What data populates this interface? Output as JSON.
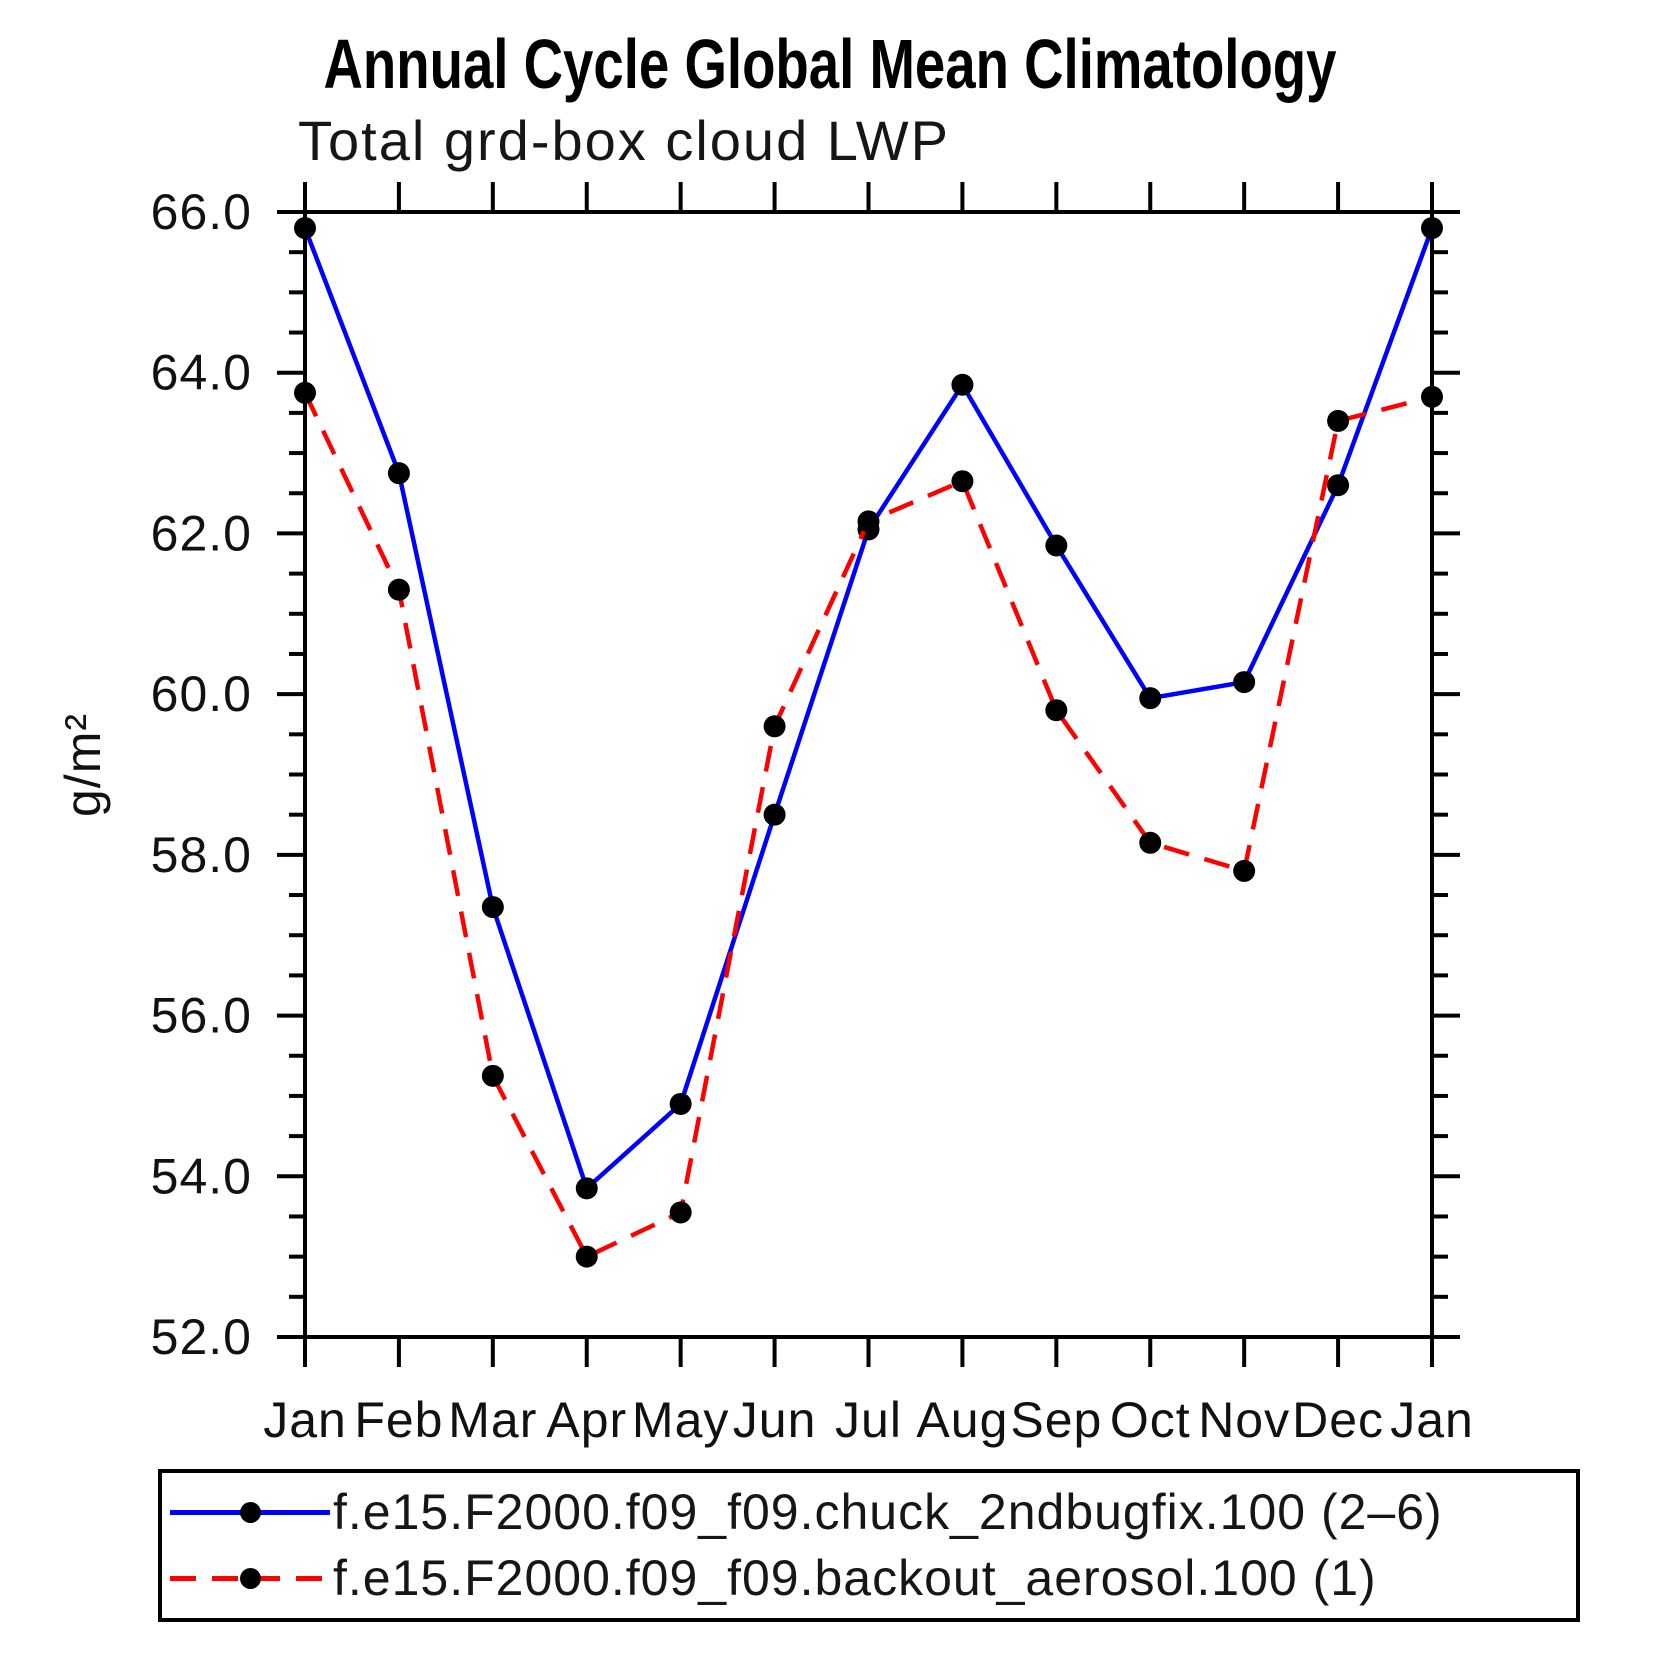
{
  "chart_data": {
    "type": "line",
    "title": "Annual Cycle Global Mean Climatology",
    "subtitle": "Total grd-box cloud LWP",
    "ylabel": "g/m²",
    "categories": [
      "Jan",
      "Feb",
      "Mar",
      "Apr",
      "May",
      "Jun",
      "Jul",
      "Aug",
      "Sep",
      "Oct",
      "Nov",
      "Dec",
      "Jan"
    ],
    "ylim": [
      52.0,
      66.0
    ],
    "y_major_step": 2.0,
    "y_minor_step": 0.5,
    "y_tick_labels": [
      "52.0",
      "54.0",
      "56.0",
      "58.0",
      "60.0",
      "62.0",
      "64.0",
      "66.0"
    ],
    "grid": false,
    "legend_position": "bottom",
    "axis_color": "#000000",
    "marker": {
      "shape": "circle",
      "color": "#000000"
    },
    "series": [
      {
        "name": "f.e15.F2000.f09_f09.chuck_2ndbugfix.100 (2–6)",
        "color": "#0000ff",
        "line_style": "solid",
        "values": [
          65.8,
          62.75,
          57.35,
          53.85,
          54.9,
          58.5,
          62.05,
          63.85,
          61.85,
          59.95,
          60.15,
          62.6,
          65.8
        ]
      },
      {
        "name": "f.e15.F2000.f09_f09.backout_aerosol.100 (1)",
        "color": "#ff0000",
        "line_style": "dashed",
        "values": [
          63.75,
          61.3,
          55.25,
          53.0,
          53.55,
          59.6,
          62.15,
          62.65,
          59.8,
          58.15,
          57.8,
          63.4,
          63.7
        ]
      }
    ]
  }
}
